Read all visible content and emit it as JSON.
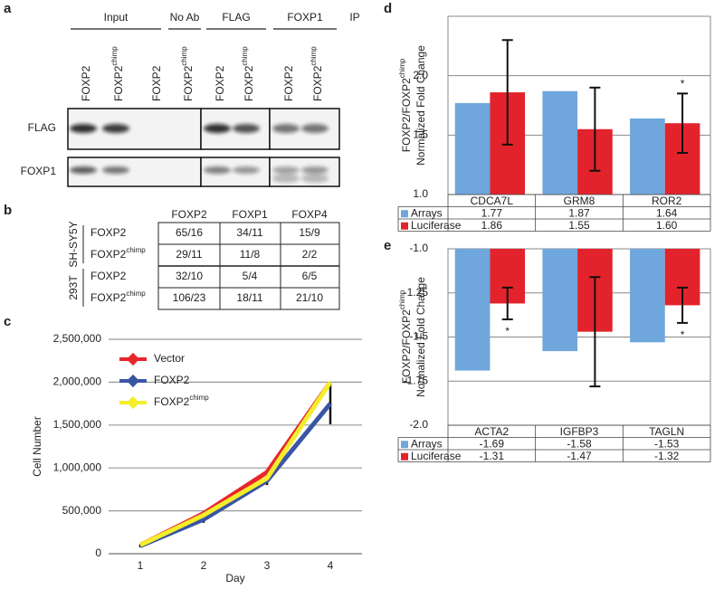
{
  "panel_labels": [
    "a",
    "b",
    "c",
    "d",
    "e"
  ],
  "blot": {
    "groups": [
      "Input",
      "No Ab",
      "FLAG",
      "FOXP1"
    ],
    "ip_label": "IP",
    "lanes": [
      {
        "text": "FOXP2"
      },
      {
        "text": "FOXP2",
        "sup": "chimp"
      },
      {
        "text": "FOXP2"
      },
      {
        "text": "FOXP2",
        "sup": "chimp"
      },
      {
        "text": "FOXP2"
      },
      {
        "text": "FOXP2",
        "sup": "chimp"
      },
      {
        "text": "FOXP2"
      },
      {
        "text": "FOXP2",
        "sup": "chimp"
      }
    ],
    "rows": [
      "FLAG",
      "FOXP1"
    ]
  },
  "table": {
    "columns": [
      "FOXP2",
      "FOXP1",
      "FOXP4"
    ],
    "groups": [
      {
        "label": "SH-SY5Y",
        "rows": [
          {
            "label": {
              "text": "FOXP2"
            },
            "cells": [
              "65/16",
              "34/11",
              "15/9"
            ]
          },
          {
            "label": {
              "text": "FOXP2",
              "sup": "chimp"
            },
            "cells": [
              "29/11",
              "11/8",
              "2/2"
            ]
          }
        ]
      },
      {
        "label": "293T",
        "rows": [
          {
            "label": {
              "text": "FOXP2"
            },
            "cells": [
              "32/10",
              "5/4",
              "6/5"
            ]
          },
          {
            "label": {
              "text": "FOXP2",
              "sup": "chimp"
            },
            "cells": [
              "106/23",
              "18/11",
              "21/10"
            ]
          }
        ]
      }
    ]
  },
  "chart_data": [
    {
      "type": "line",
      "xlabel": "Day",
      "ylabel": "Cell Number",
      "categories": [
        "1",
        "2",
        "3",
        "4"
      ],
      "ylim": [
        0,
        2500000
      ],
      "yticks": [
        0,
        {
          "value": 500000,
          "label": "500,000"
        },
        {
          "value": 1000000,
          "label": "1,000,000"
        },
        {
          "value": 1500000,
          "label": "1,500,000"
        },
        {
          "value": 2000000,
          "label": "2,000,000"
        },
        {
          "value": 2500000,
          "label": "2,500,000"
        }
      ],
      "grid": true,
      "series": [
        {
          "name": "Vector",
          "color": "#e8262b",
          "values": [
            100000,
            470000,
            950000,
            2000000
          ]
        },
        {
          "name": "FOXP2",
          "color": "#3a55a4",
          "values": [
            90000,
            400000,
            850000,
            1750000
          ],
          "errors": [
            15000,
            40000,
            50000,
            240000
          ]
        },
        {
          "name": "FOXP2",
          "name_sup": "chimp",
          "color": "#f4ee2a",
          "values": [
            100000,
            450000,
            880000,
            2000000
          ]
        }
      ]
    },
    {
      "type": "bar",
      "ylabel": {
        "text": "FOXP2/FOXP2",
        "sup": "chimp",
        "line2": "Normalized Fold Change"
      },
      "categories": [
        "CDCA7L",
        "GRM8",
        "ROR2"
      ],
      "ylim": [
        1.0,
        2.5
      ],
      "yticks": [
        {
          "value": 1.0,
          "label": "1.0"
        },
        1.5,
        {
          "value": 2.0,
          "label": "2.0"
        }
      ],
      "grid": true,
      "series": [
        {
          "name": "Arrays",
          "color": "#6fa6dc",
          "values": [
            1.77,
            1.87,
            1.64
          ],
          "value_labels": [
            "1.77",
            "1.87",
            "1.64"
          ]
        },
        {
          "name": "Luciferase",
          "color": "#e3232b",
          "values": [
            1.86,
            1.55,
            1.6
          ],
          "value_labels": [
            "1.86",
            "1.55",
            "1.60"
          ],
          "errors": [
            0.44,
            0.35,
            0.25
          ],
          "significance": [
            null,
            null,
            "*"
          ]
        }
      ]
    },
    {
      "type": "bar",
      "ylabel": {
        "text": "FOXP2/FOXP2",
        "sup": "chimp",
        "line2": "Normalized Fold Change"
      },
      "categories": [
        "ACTA2",
        "IGFBP3",
        "TAGLN"
      ],
      "ylim": [
        -2.0,
        -1.0
      ],
      "yticks": [
        {
          "value": -1.0,
          "label": "-1.0"
        },
        -1.25,
        -1.5,
        -1.75,
        {
          "value": -2.0,
          "label": "-2.0"
        }
      ],
      "grid": true,
      "series": [
        {
          "name": "Arrays",
          "color": "#6fa6dc",
          "values": [
            -1.69,
            -1.58,
            -1.53
          ],
          "value_labels": [
            "-1.69",
            "-1.58",
            "-1.53"
          ]
        },
        {
          "name": "Luciferase",
          "color": "#e3232b",
          "values": [
            -1.31,
            -1.47,
            -1.32
          ],
          "value_labels": [
            "-1.31",
            "-1.47",
            "-1.32"
          ],
          "errors": [
            0.09,
            0.31,
            0.1
          ],
          "significance": [
            "*",
            null,
            "*"
          ]
        }
      ]
    }
  ]
}
